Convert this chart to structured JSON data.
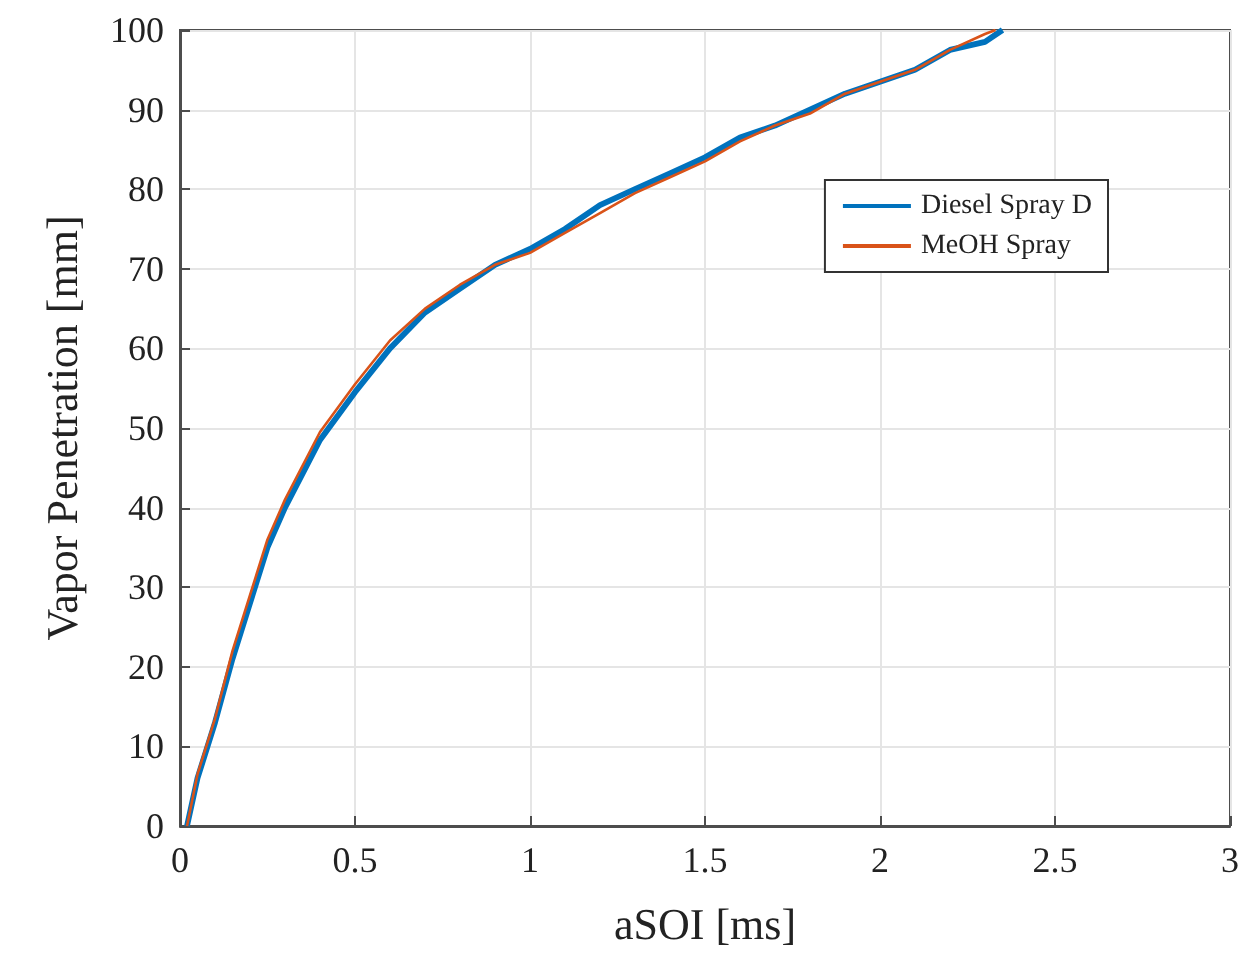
{
  "chart_data": {
    "type": "line",
    "xlabel": "aSOI [ms]",
    "ylabel": "Vapor Penetration [mm]",
    "xlim": [
      0,
      3
    ],
    "ylim": [
      0,
      100
    ],
    "xticks": [
      0,
      0.5,
      1,
      1.5,
      2,
      2.5,
      3
    ],
    "yticks": [
      0,
      10,
      20,
      30,
      40,
      50,
      60,
      70,
      80,
      90,
      100
    ],
    "grid": true,
    "legend": "top right",
    "marker": "none",
    "line_style": "solid",
    "series": [
      {
        "name": "Diesel Spray D",
        "color": "#0072bd",
        "x": [
          0.02,
          0.05,
          0.1,
          0.15,
          0.2,
          0.25,
          0.3,
          0.4,
          0.5,
          0.6,
          0.7,
          0.8,
          0.9,
          1.0,
          1.1,
          1.2,
          1.3,
          1.4,
          1.5,
          1.6,
          1.7,
          1.8,
          1.9,
          2.0,
          2.1,
          2.2,
          2.3,
          2.35
        ],
        "values": [
          0,
          6,
          13,
          21,
          28,
          35,
          40,
          48.5,
          54.5,
          60,
          64.5,
          67.5,
          70.5,
          72.5,
          75,
          78,
          80,
          82,
          84,
          86.5,
          88,
          90,
          92,
          93.5,
          95,
          97.5,
          98.5,
          100
        ]
      },
      {
        "name": "MeOH Spray",
        "color": "#d95319",
        "x": [
          0.02,
          0.05,
          0.1,
          0.15,
          0.2,
          0.25,
          0.3,
          0.4,
          0.5,
          0.6,
          0.7,
          0.8,
          0.9,
          1.0,
          1.1,
          1.2,
          1.3,
          1.4,
          1.5,
          1.6,
          1.7,
          1.8,
          1.9,
          2.0,
          2.1,
          2.2,
          2.3,
          2.33
        ],
        "values": [
          0,
          6.5,
          13.5,
          22,
          29,
          36,
          41,
          49.5,
          55.5,
          61,
          65,
          68,
          70.5,
          72,
          74.5,
          77,
          79.5,
          81.5,
          83.5,
          86,
          88,
          89.5,
          92,
          93.5,
          95,
          97.5,
          99.5,
          100
        ]
      }
    ]
  }
}
